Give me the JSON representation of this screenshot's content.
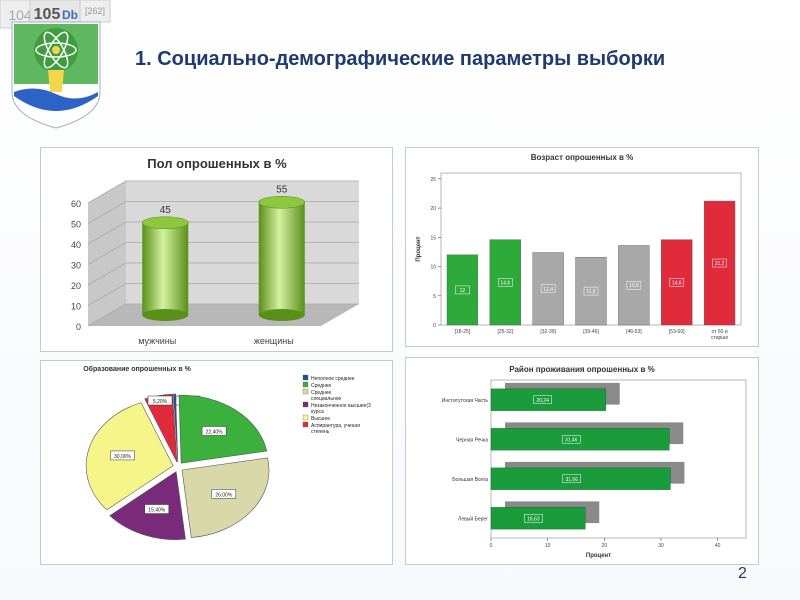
{
  "slide": {
    "title": "1. Социально-демографические параметры выборки",
    "page_number": "2",
    "logo": {
      "tiles": [
        "104",
        "105",
        "Db",
        "[262]"
      ]
    }
  },
  "chart_data": [
    {
      "id": "gender",
      "type": "bar",
      "title": "Пол опрошенных в %",
      "categories": [
        "мужчины",
        "женщины"
      ],
      "values": [
        45,
        55
      ],
      "ylim": [
        0,
        60
      ],
      "yticks": [
        0,
        10,
        20,
        30,
        40,
        50,
        60
      ],
      "grid": true,
      "colors": {
        "bar": "#8dc63f",
        "bar_dark": "#5a8f1a",
        "bar_light": "#d4f0a0",
        "wall": "#d9d9d9"
      }
    },
    {
      "id": "age",
      "type": "bar",
      "title": "Возраст опрошенных в %",
      "ylabel": "Процент",
      "categories": [
        "[18-25]",
        "[25-32]",
        "[32-39]",
        "[39-46]",
        "[46-53]",
        "[53-60]",
        "от 60 и старше"
      ],
      "values": [
        12,
        14.6,
        12.4,
        11.6,
        13.6,
        14.6,
        21.2
      ],
      "labels": [
        "12",
        "14,6",
        "12,4",
        "11,6",
        "13,6",
        "14,6",
        "21,2"
      ],
      "ylim": [
        0,
        26
      ],
      "yticks": [
        0,
        5,
        10,
        15,
        20,
        25
      ],
      "colors": [
        "#2eaa3a",
        "#2eaa3a",
        "#a8a8a8",
        "#a8a8a8",
        "#a8a8a8",
        "#e02b3c",
        "#e02b3c"
      ]
    },
    {
      "id": "education",
      "type": "pie",
      "title": "Образование опрошенных в %",
      "legend_position": "right",
      "series": [
        {
          "name": "Неполное среднее",
          "value": 0.4,
          "label": "0,40%",
          "color": "#1f4e9c"
        },
        {
          "name": "Среднее",
          "value": 22.4,
          "label": "22,40%",
          "color": "#3cb03c"
        },
        {
          "name": "Среднее специальное",
          "value": 26.0,
          "label": "26,00%",
          "color": "#d8d8a8"
        },
        {
          "name": "Незаконченное высшее(3 курса",
          "value": 15.4,
          "label": "15,40%",
          "color": "#7a2a7a"
        },
        {
          "name": "Высшее",
          "value": 30.0,
          "label": "30,00%",
          "color": "#f5f58a"
        },
        {
          "name": "Аспирантура, ученая степень",
          "value": 5.2,
          "label": "5,20%",
          "color": "#e02b3c"
        }
      ]
    },
    {
      "id": "district",
      "type": "bar",
      "orientation": "horizontal",
      "title": "Район проживания опрошенных в %",
      "xlabel": "Процент",
      "categories": [
        "Институтская Часть",
        "Черная Речка",
        "Большая Волга",
        "Левый Берег"
      ],
      "values": [
        20.24,
        31.46,
        31.66,
        16.63
      ],
      "labels": [
        "20,24",
        "31,46",
        "31,66",
        "16,63"
      ],
      "xlim": [
        0,
        45
      ],
      "xticks": [
        0,
        10,
        20,
        30,
        40
      ],
      "colors": {
        "bar": "#1a9b3c",
        "shadow": "#8a8a8a"
      }
    }
  ]
}
